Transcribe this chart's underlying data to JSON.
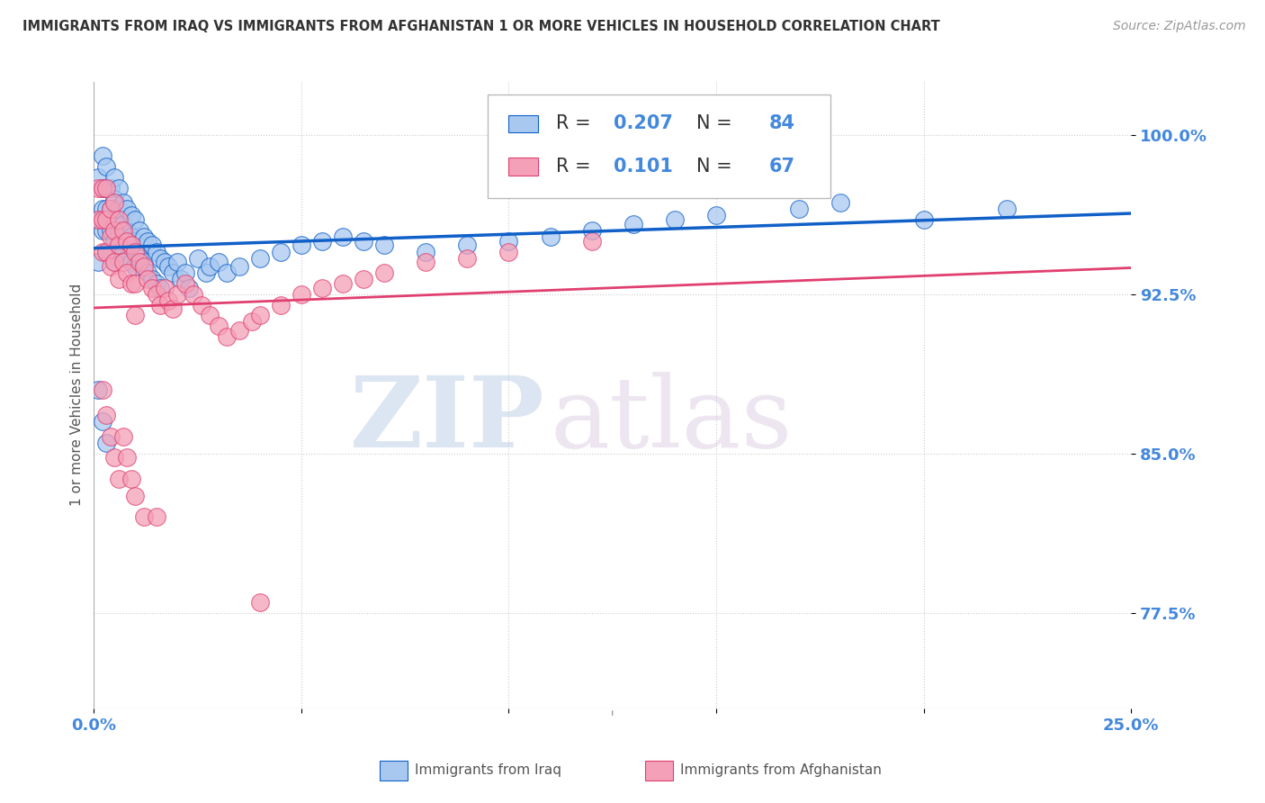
{
  "title": "IMMIGRANTS FROM IRAQ VS IMMIGRANTS FROM AFGHANISTAN 1 OR MORE VEHICLES IN HOUSEHOLD CORRELATION CHART",
  "source": "Source: ZipAtlas.com",
  "ylabel": "1 or more Vehicles in Household",
  "ytick_labels": [
    "100.0%",
    "92.5%",
    "85.0%",
    "77.5%"
  ],
  "ytick_values": [
    1.0,
    0.925,
    0.85,
    0.775
  ],
  "xlim": [
    0.0,
    0.25
  ],
  "ylim": [
    0.73,
    1.025
  ],
  "R_iraq": 0.207,
  "N_iraq": 84,
  "R_afghanistan": 0.101,
  "N_afghanistan": 67,
  "color_iraq": "#A8C8F0",
  "color_afghanistan": "#F4A0B8",
  "line_color_iraq": "#1060C8",
  "line_color_afghanistan": "#E04070",
  "legend_label_iraq": "Immigrants from Iraq",
  "legend_label_afghanistan": "Immigrants from Afghanistan",
  "watermark_zip": "ZIP",
  "watermark_atlas": "atlas",
  "bg_color": "#FFFFFF",
  "grid_color": "#CCCCCC",
  "title_color": "#333333",
  "tick_label_color": "#4488DD",
  "legend_text_color": "#333333",
  "legend_value_color": "#4488DD",
  "iraq_x": [
    0.001,
    0.001,
    0.001,
    0.002,
    0.002,
    0.002,
    0.002,
    0.003,
    0.003,
    0.003,
    0.003,
    0.003,
    0.004,
    0.004,
    0.004,
    0.004,
    0.005,
    0.005,
    0.005,
    0.005,
    0.005,
    0.006,
    0.006,
    0.006,
    0.006,
    0.007,
    0.007,
    0.007,
    0.008,
    0.008,
    0.008,
    0.009,
    0.009,
    0.009,
    0.01,
    0.01,
    0.01,
    0.011,
    0.011,
    0.012,
    0.012,
    0.013,
    0.013,
    0.014,
    0.014,
    0.015,
    0.015,
    0.016,
    0.016,
    0.017,
    0.018,
    0.019,
    0.02,
    0.021,
    0.022,
    0.023,
    0.025,
    0.027,
    0.028,
    0.03,
    0.032,
    0.035,
    0.04,
    0.045,
    0.05,
    0.055,
    0.06,
    0.065,
    0.07,
    0.08,
    0.09,
    0.1,
    0.11,
    0.12,
    0.13,
    0.14,
    0.15,
    0.17,
    0.2,
    0.22,
    0.001,
    0.002,
    0.003,
    0.18
  ],
  "iraq_y": [
    0.98,
    0.96,
    0.94,
    0.99,
    0.975,
    0.965,
    0.955,
    0.985,
    0.975,
    0.965,
    0.955,
    0.945,
    0.975,
    0.965,
    0.955,
    0.945,
    0.98,
    0.97,
    0.96,
    0.95,
    0.94,
    0.975,
    0.965,
    0.955,
    0.942,
    0.968,
    0.958,
    0.945,
    0.965,
    0.955,
    0.942,
    0.962,
    0.952,
    0.94,
    0.96,
    0.95,
    0.938,
    0.955,
    0.942,
    0.952,
    0.94,
    0.95,
    0.935,
    0.948,
    0.932,
    0.945,
    0.93,
    0.942,
    0.928,
    0.94,
    0.938,
    0.935,
    0.94,
    0.932,
    0.935,
    0.928,
    0.942,
    0.935,
    0.938,
    0.94,
    0.935,
    0.938,
    0.942,
    0.945,
    0.948,
    0.95,
    0.952,
    0.95,
    0.948,
    0.945,
    0.948,
    0.95,
    0.952,
    0.955,
    0.958,
    0.96,
    0.962,
    0.965,
    0.96,
    0.965,
    0.88,
    0.865,
    0.855,
    0.968
  ],
  "afghanistan_x": [
    0.001,
    0.001,
    0.002,
    0.002,
    0.002,
    0.003,
    0.003,
    0.003,
    0.004,
    0.004,
    0.004,
    0.005,
    0.005,
    0.005,
    0.006,
    0.006,
    0.006,
    0.007,
    0.007,
    0.008,
    0.008,
    0.009,
    0.009,
    0.01,
    0.01,
    0.01,
    0.011,
    0.012,
    0.013,
    0.014,
    0.015,
    0.016,
    0.017,
    0.018,
    0.019,
    0.02,
    0.022,
    0.024,
    0.026,
    0.028,
    0.03,
    0.032,
    0.035,
    0.038,
    0.04,
    0.045,
    0.05,
    0.055,
    0.06,
    0.065,
    0.07,
    0.08,
    0.09,
    0.1,
    0.12,
    0.002,
    0.003,
    0.004,
    0.005,
    0.006,
    0.007,
    0.008,
    0.009,
    0.01,
    0.012,
    0.015,
    0.04
  ],
  "afghanistan_y": [
    0.975,
    0.96,
    0.975,
    0.96,
    0.945,
    0.975,
    0.96,
    0.945,
    0.965,
    0.952,
    0.938,
    0.968,
    0.955,
    0.94,
    0.96,
    0.948,
    0.932,
    0.955,
    0.94,
    0.95,
    0.935,
    0.948,
    0.93,
    0.945,
    0.93,
    0.915,
    0.94,
    0.938,
    0.932,
    0.928,
    0.925,
    0.92,
    0.928,
    0.922,
    0.918,
    0.925,
    0.93,
    0.925,
    0.92,
    0.915,
    0.91,
    0.905,
    0.908,
    0.912,
    0.915,
    0.92,
    0.925,
    0.928,
    0.93,
    0.932,
    0.935,
    0.94,
    0.942,
    0.945,
    0.95,
    0.88,
    0.868,
    0.858,
    0.848,
    0.838,
    0.858,
    0.848,
    0.838,
    0.83,
    0.82,
    0.82,
    0.78
  ]
}
